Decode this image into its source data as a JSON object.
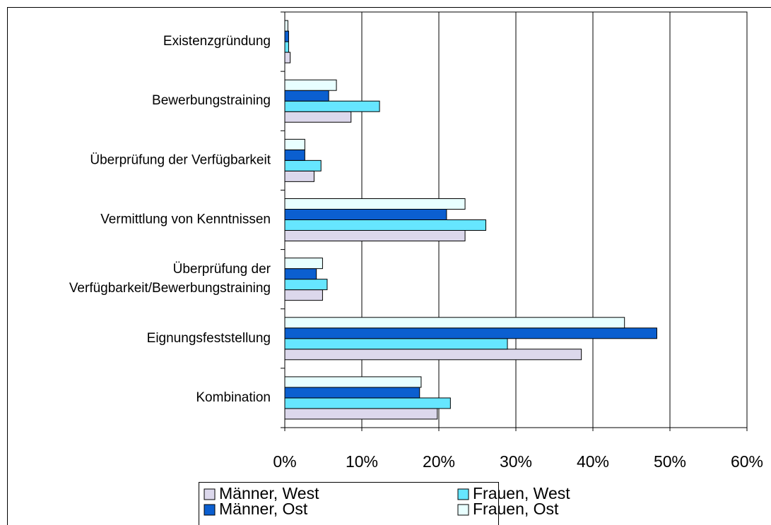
{
  "chart_data": {
    "type": "bar",
    "orientation": "horizontal",
    "categories": [
      "Existenzgründung",
      "Bewerbungstraining",
      "Überprüfung der Verfügbarkeit",
      "Vermittlung von Kenntnissen",
      "Überprüfung der Verfügbarkeit/Bewerbungstraining",
      "Eignungsfeststellung",
      "Kombination"
    ],
    "series": [
      {
        "name": "Männer, West",
        "color": "#dcd8ec",
        "values": [
          0.7,
          8.6,
          3.8,
          23.4,
          4.9,
          38.5,
          19.8
        ]
      },
      {
        "name": "Frauen, West",
        "color": "#66e6ff",
        "values": [
          0.5,
          12.3,
          4.7,
          26.1,
          5.5,
          28.9,
          21.5
        ]
      },
      {
        "name": "Männer, Ost",
        "color": "#0b5fd0",
        "values": [
          0.5,
          5.7,
          2.6,
          21.0,
          4.1,
          48.3,
          17.5
        ]
      },
      {
        "name": "Frauen, Ost",
        "color": "#e8ffff",
        "values": [
          0.4,
          6.7,
          2.6,
          23.4,
          4.9,
          44.1,
          17.7
        ]
      }
    ],
    "xlim": [
      0,
      60
    ],
    "xticks": [
      {
        "value": 0,
        "label": "0%"
      },
      {
        "value": 10,
        "label": "10%"
      },
      {
        "value": 20,
        "label": "20%"
      },
      {
        "value": 30,
        "label": "30%"
      },
      {
        "value": 40,
        "label": "40%"
      },
      {
        "value": 50,
        "label": "50%"
      },
      {
        "value": 60,
        "label": "60%"
      }
    ],
    "grid": true,
    "legend": "bottom"
  }
}
